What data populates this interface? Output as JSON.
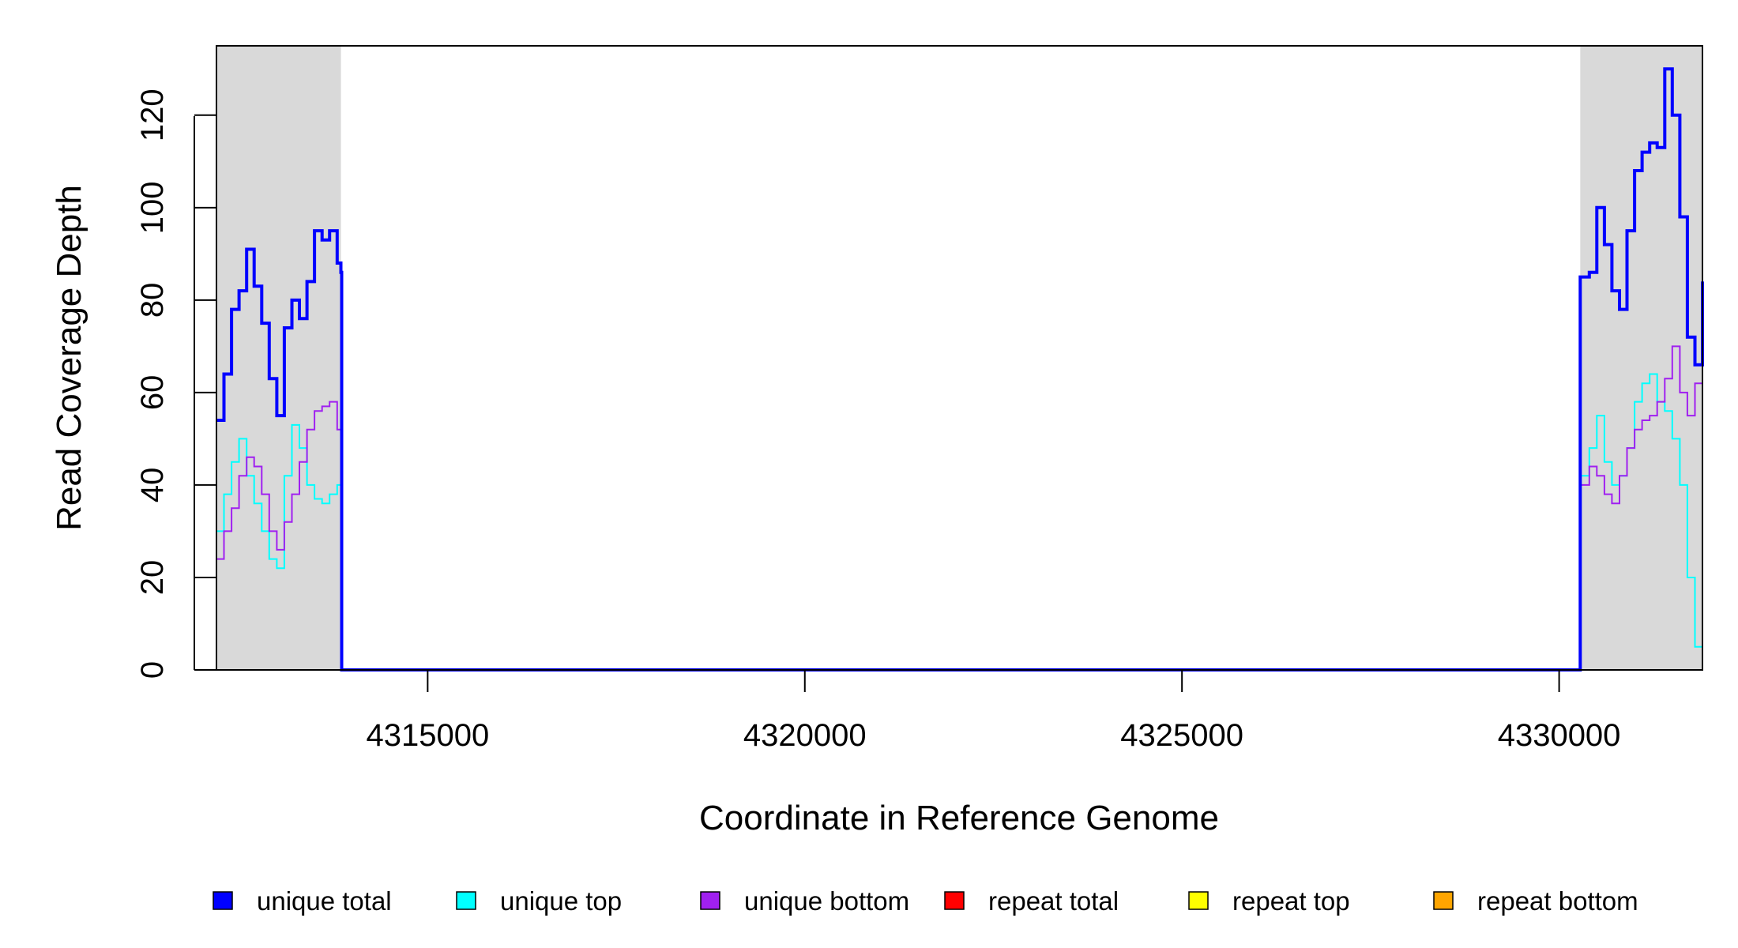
{
  "chart_data": {
    "type": "line",
    "xlabel": "Coordinate in Reference Genome",
    "ylabel": "Read Coverage Depth",
    "xlim": [
      4312200,
      4331900
    ],
    "ylim": [
      0,
      135
    ],
    "xticks": [
      4315000,
      4320000,
      4325000,
      4330000
    ],
    "xtick_labels": [
      "4315000",
      "4320000",
      "4325000",
      "4330000"
    ],
    "yticks": [
      0,
      20,
      40,
      60,
      80,
      100,
      120
    ],
    "ytick_labels": [
      "0",
      "20",
      "40",
      "60",
      "80",
      "100",
      "120"
    ],
    "grid": false,
    "shaded_regions": [
      [
        4312200,
        4313850
      ],
      [
        4330280,
        4331900
      ]
    ],
    "shade_color": "#d9d9d9",
    "legend": {
      "placement": "bottom"
    },
    "series": [
      {
        "name": "unique total",
        "color": "#0000ff",
        "x": [
          4312200,
          4312300,
          4312400,
          4312500,
          4312600,
          4312700,
          4312800,
          4312900,
          4313000,
          4313100,
          4313200,
          4313300,
          4313400,
          4313500,
          4313600,
          4313700,
          4313800,
          4313850,
          4313860,
          4330270,
          4330280,
          4330400,
          4330500,
          4330600,
          4330700,
          4330800,
          4330900,
          4331000,
          4331100,
          4331200,
          4331300,
          4331400,
          4331500,
          4331600,
          4331700,
          4331800,
          4331900
        ],
        "y": [
          54,
          64,
          78,
          82,
          91,
          83,
          75,
          63,
          55,
          74,
          80,
          76,
          84,
          95,
          93,
          95,
          88,
          86,
          0,
          0,
          85,
          86,
          100,
          92,
          82,
          78,
          95,
          108,
          112,
          114,
          113,
          130,
          120,
          98,
          72,
          66,
          84
        ]
      },
      {
        "name": "unique top",
        "color": "#00ffff",
        "x": [
          4312200,
          4312300,
          4312400,
          4312500,
          4312600,
          4312700,
          4312800,
          4312900,
          4313000,
          4313100,
          4313200,
          4313300,
          4313400,
          4313500,
          4313600,
          4313700,
          4313800,
          4313850,
          4313860,
          4330270,
          4330280,
          4330400,
          4330500,
          4330600,
          4330700,
          4330800,
          4330900,
          4331000,
          4331100,
          4331200,
          4331300,
          4331400,
          4331500,
          4331600,
          4331700,
          4331800,
          4331900
        ],
        "y": [
          30,
          38,
          45,
          50,
          42,
          36,
          30,
          24,
          22,
          42,
          53,
          48,
          40,
          37,
          36,
          38,
          40,
          40,
          0,
          0,
          42,
          48,
          55,
          45,
          40,
          42,
          48,
          58,
          62,
          64,
          58,
          56,
          50,
          40,
          20,
          5,
          31
        ]
      },
      {
        "name": "unique bottom",
        "color": "#a020f0",
        "x": [
          4312200,
          4312300,
          4312400,
          4312500,
          4312600,
          4312700,
          4312800,
          4312900,
          4313000,
          4313100,
          4313200,
          4313300,
          4313400,
          4313500,
          4313600,
          4313700,
          4313800,
          4313850,
          4313860,
          4330270,
          4330280,
          4330400,
          4330500,
          4330600,
          4330700,
          4330800,
          4330900,
          4331000,
          4331100,
          4331200,
          4331300,
          4331400,
          4331500,
          4331600,
          4331700,
          4331800,
          4331900
        ],
        "y": [
          24,
          30,
          35,
          42,
          46,
          44,
          38,
          30,
          26,
          32,
          38,
          45,
          52,
          56,
          57,
          58,
          52,
          48,
          0,
          0,
          40,
          44,
          42,
          38,
          36,
          42,
          48,
          52,
          54,
          55,
          58,
          63,
          70,
          60,
          55,
          62,
          56
        ]
      },
      {
        "name": "repeat total",
        "color": "#ff0000",
        "x": [
          4312200,
          4331900
        ],
        "y": [
          0,
          0
        ]
      },
      {
        "name": "repeat top",
        "color": "#ffff00",
        "x": [
          4312200,
          4331900
        ],
        "y": [
          0,
          0
        ]
      },
      {
        "name": "repeat bottom",
        "color": "#ffa500",
        "x": [
          4312200,
          4331900
        ],
        "y": [
          0,
          0
        ]
      }
    ]
  }
}
